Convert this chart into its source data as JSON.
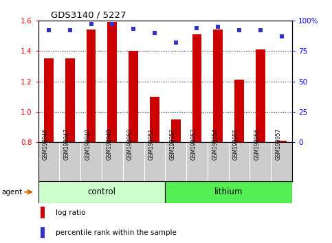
{
  "title": "GDS3140 / 5227",
  "samples": [
    "GSM198946",
    "GSM198947",
    "GSM198948",
    "GSM198949",
    "GSM198950",
    "GSM198951",
    "GSM198952",
    "GSM198953",
    "GSM198954",
    "GSM198955",
    "GSM198956",
    "GSM198957"
  ],
  "log_ratio": [
    1.35,
    1.35,
    1.54,
    1.59,
    1.4,
    1.1,
    0.95,
    1.51,
    1.54,
    1.21,
    1.41,
    0.81
  ],
  "percentile_rank": [
    92,
    92,
    97,
    97,
    93,
    90,
    82,
    94,
    95,
    92,
    92,
    87
  ],
  "bar_bottom": 0.8,
  "ylim_left": [
    0.8,
    1.6
  ],
  "ylim_right": [
    0,
    100
  ],
  "yticks_left": [
    0.8,
    1.0,
    1.2,
    1.4,
    1.6
  ],
  "yticks_right": [
    0,
    25,
    50,
    75,
    100
  ],
  "bar_color": "#cc0000",
  "dot_color": "#3333cc",
  "control_samples": 6,
  "control_label": "control",
  "lithium_label": "lithium",
  "agent_label": "agent",
  "control_color": "#ccffcc",
  "lithium_color": "#55ee55",
  "legend_log_ratio": "log ratio",
  "legend_percentile": "percentile rank within the sample",
  "tick_label_area_color": "#cccccc",
  "agent_arrow_color": "#cc6600",
  "bar_width": 0.45
}
